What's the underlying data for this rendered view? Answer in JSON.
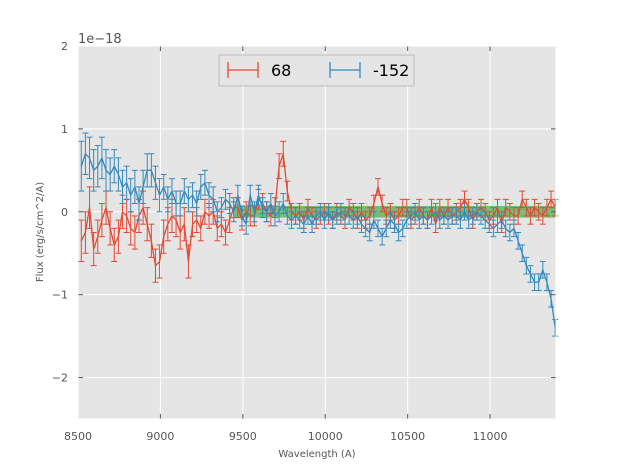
{
  "chart_data": {
    "type": "line",
    "title": "",
    "xlabel": "Wavelength (A)",
    "ylabel": "Flux (erg/s/cm^2/A)",
    "offset_text": "1e−18",
    "xlim": [
      8500,
      11400
    ],
    "ylim": [
      -2.5,
      2.0
    ],
    "y_unit_scale": "1e-18",
    "x_ticks": [
      8500,
      9000,
      9500,
      10000,
      10500,
      11000
    ],
    "x_tick_labels": [
      "8500",
      "9000",
      "9500",
      "10000",
      "10500",
      "11000"
    ],
    "y_ticks": [
      2,
      1,
      0,
      -1,
      -2
    ],
    "y_tick_labels": [
      "2",
      "1",
      "0",
      "−1",
      "−2"
    ],
    "grid": true,
    "legend_position": "top-center",
    "band": {
      "x_start": 9450,
      "x_end": 11400,
      "y_low": -0.07,
      "y_high": 0.07,
      "color": "#2ca02c"
    },
    "series": [
      {
        "name": "68",
        "color": "#e24a33",
        "x": [
          8520,
          8545,
          8570,
          8595,
          8620,
          8645,
          8670,
          8695,
          8720,
          8745,
          8770,
          8795,
          8820,
          8845,
          8870,
          8895,
          8920,
          8945,
          8970,
          8995,
          9020,
          9045,
          9070,
          9095,
          9120,
          9145,
          9170,
          9195,
          9220,
          9245,
          9270,
          9295,
          9320,
          9345,
          9370,
          9395,
          9420,
          9445,
          9470,
          9495,
          9520,
          9545,
          9570,
          9595,
          9620,
          9645,
          9670,
          9695,
          9720,
          9745,
          9770,
          9795,
          9820,
          9845,
          9870,
          9895,
          9920,
          9945,
          9970,
          9995,
          10020,
          10045,
          10070,
          10095,
          10120,
          10145,
          10170,
          10195,
          10220,
          10245,
          10270,
          10295,
          10320,
          10345,
          10370,
          10395,
          10420,
          10445,
          10470,
          10495,
          10520,
          10545,
          10570,
          10595,
          10620,
          10645,
          10670,
          10695,
          10720,
          10745,
          10770,
          10795,
          10820,
          10845,
          10870,
          10895,
          10920,
          10945,
          10970,
          10995,
          11020,
          11045,
          11070,
          11095,
          11120,
          11145,
          11170,
          11195,
          11220,
          11245,
          11270,
          11295,
          11320,
          11345,
          11370,
          11395
        ],
        "y": [
          -0.35,
          -0.25,
          0.05,
          -0.45,
          -0.3,
          -0.1,
          0.05,
          -0.2,
          -0.4,
          -0.3,
          0.0,
          -0.05,
          -0.2,
          -0.25,
          -0.05,
          0.05,
          -0.15,
          -0.35,
          -0.65,
          -0.6,
          -0.3,
          -0.15,
          -0.05,
          -0.1,
          -0.25,
          -0.15,
          -0.6,
          -0.15,
          -0.1,
          -0.2,
          0.0,
          -0.05,
          0.0,
          -0.2,
          -0.15,
          -0.25,
          -0.1,
          0.05,
          0.05,
          -0.1,
          0.0,
          -0.05,
          -0.05,
          0.15,
          0.1,
          0.0,
          -0.05,
          0.05,
          0.55,
          0.7,
          0.25,
          0.0,
          -0.05,
          0.0,
          -0.1,
          0.05,
          -0.05,
          -0.1,
          -0.05,
          0.0,
          -0.05,
          -0.1,
          0.0,
          -0.05,
          -0.1,
          0.05,
          0.0,
          -0.1,
          0.0,
          -0.1,
          -0.05,
          0.1,
          0.3,
          0.1,
          -0.05,
          0.0,
          -0.1,
          -0.05,
          0.05,
          0.05,
          -0.1,
          -0.05,
          0.05,
          -0.05,
          -0.1,
          0.05,
          -0.15,
          0.05,
          -0.05,
          0.05,
          -0.05,
          0.0,
          0.05,
          0.15,
          0.05,
          -0.1,
          0.0,
          0.05,
          0.0,
          -0.1,
          -0.05,
          0.05,
          -0.15,
          0.05,
          0.0,
          -0.05,
          -0.05,
          0.15,
          0.05,
          -0.05,
          0.05,
          0.0,
          -0.05,
          0.05,
          0.15,
          0.05
        ],
        "err": [
          0.25,
          0.25,
          0.25,
          0.2,
          0.2,
          0.2,
          0.2,
          0.2,
          0.2,
          0.2,
          0.2,
          0.2,
          0.2,
          0.2,
          0.2,
          0.2,
          0.2,
          0.2,
          0.2,
          0.2,
          0.2,
          0.2,
          0.2,
          0.2,
          0.2,
          0.2,
          0.2,
          0.15,
          0.15,
          0.15,
          0.15,
          0.15,
          0.15,
          0.15,
          0.15,
          0.15,
          0.15,
          0.12,
          0.12,
          0.12,
          0.12,
          0.12,
          0.12,
          0.12,
          0.12,
          0.12,
          0.12,
          0.12,
          0.15,
          0.15,
          0.12,
          0.1,
          0.1,
          0.1,
          0.1,
          0.1,
          0.1,
          0.1,
          0.1,
          0.1,
          0.1,
          0.1,
          0.1,
          0.1,
          0.1,
          0.1,
          0.1,
          0.1,
          0.1,
          0.1,
          0.1,
          0.1,
          0.1,
          0.1,
          0.1,
          0.1,
          0.1,
          0.1,
          0.1,
          0.1,
          0.1,
          0.1,
          0.1,
          0.1,
          0.1,
          0.1,
          0.1,
          0.1,
          0.1,
          0.1,
          0.1,
          0.1,
          0.1,
          0.1,
          0.1,
          0.1,
          0.1,
          0.1,
          0.1,
          0.1,
          0.1,
          0.1,
          0.1,
          0.1,
          0.1,
          0.1,
          0.1,
          0.1,
          0.1,
          0.1,
          0.1,
          0.1,
          0.1,
          0.1,
          0.1,
          0.1
        ]
      },
      {
        "name": "-152",
        "color": "#348abd",
        "x": [
          8520,
          8545,
          8570,
          8595,
          8620,
          8645,
          8670,
          8695,
          8720,
          8745,
          8770,
          8795,
          8820,
          8845,
          8870,
          8895,
          8920,
          8945,
          8970,
          8995,
          9020,
          9045,
          9070,
          9095,
          9120,
          9145,
          9170,
          9195,
          9220,
          9245,
          9270,
          9295,
          9320,
          9345,
          9370,
          9395,
          9420,
          9445,
          9470,
          9495,
          9520,
          9545,
          9570,
          9595,
          9620,
          9645,
          9670,
          9695,
          9720,
          9745,
          9770,
          9795,
          9820,
          9845,
          9870,
          9895,
          9920,
          9945,
          9970,
          9995,
          10020,
          10045,
          10070,
          10095,
          10120,
          10145,
          10170,
          10195,
          10220,
          10245,
          10270,
          10295,
          10320,
          10345,
          10370,
          10395,
          10420,
          10445,
          10470,
          10495,
          10520,
          10545,
          10570,
          10595,
          10620,
          10645,
          10670,
          10695,
          10720,
          10745,
          10770,
          10795,
          10820,
          10845,
          10870,
          10895,
          10920,
          10945,
          10970,
          10995,
          11020,
          11045,
          11070,
          11095,
          11120,
          11145,
          11170,
          11195,
          11220,
          11245,
          11270,
          11295,
          11320,
          11345,
          11370,
          11395
        ],
        "y": [
          0.55,
          0.7,
          0.65,
          0.5,
          0.55,
          0.65,
          0.5,
          0.45,
          0.55,
          0.45,
          0.3,
          0.35,
          0.2,
          0.3,
          0.1,
          0.3,
          0.5,
          0.5,
          0.35,
          0.2,
          0.3,
          0.15,
          0.25,
          0.1,
          0.1,
          0.25,
          0.15,
          0.2,
          0.1,
          0.3,
          0.35,
          0.2,
          0.15,
          0.0,
          0.05,
          0.15,
          0.1,
          0.0,
          0.2,
          -0.05,
          -0.15,
          0.2,
          0.0,
          0.2,
          0.05,
          0.0,
          0.1,
          -0.05,
          0.0,
          0.1,
          -0.05,
          -0.1,
          -0.05,
          -0.1,
          -0.15,
          -0.05,
          -0.15,
          -0.05,
          0.0,
          -0.1,
          0.0,
          -0.1,
          -0.05,
          0.0,
          -0.05,
          -0.05,
          -0.1,
          -0.05,
          -0.15,
          -0.2,
          -0.25,
          -0.1,
          -0.2,
          -0.3,
          -0.2,
          -0.1,
          -0.15,
          -0.25,
          -0.2,
          -0.1,
          -0.05,
          0.0,
          -0.1,
          -0.05,
          -0.1,
          -0.05,
          0.0,
          -0.1,
          -0.05,
          -0.1,
          -0.05,
          -0.05,
          -0.1,
          0.0,
          -0.1,
          -0.05,
          0.0,
          -0.05,
          -0.1,
          -0.15,
          -0.2,
          -0.15,
          -0.1,
          -0.2,
          -0.25,
          -0.2,
          -0.35,
          -0.5,
          -0.65,
          -0.75,
          -0.85,
          -0.85,
          -0.7,
          -0.85,
          -1.05,
          -1.4
        ],
        "err": [
          0.3,
          0.25,
          0.25,
          0.25,
          0.25,
          0.25,
          0.25,
          0.2,
          0.2,
          0.2,
          0.2,
          0.2,
          0.2,
          0.2,
          0.2,
          0.2,
          0.2,
          0.2,
          0.2,
          0.2,
          0.15,
          0.15,
          0.15,
          0.15,
          0.15,
          0.15,
          0.15,
          0.15,
          0.15,
          0.15,
          0.15,
          0.15,
          0.15,
          0.12,
          0.12,
          0.12,
          0.12,
          0.12,
          0.12,
          0.12,
          0.12,
          0.12,
          0.12,
          0.12,
          0.12,
          0.12,
          0.12,
          0.12,
          0.12,
          0.12,
          0.1,
          0.1,
          0.1,
          0.1,
          0.1,
          0.1,
          0.1,
          0.1,
          0.1,
          0.1,
          0.1,
          0.1,
          0.1,
          0.1,
          0.1,
          0.1,
          0.1,
          0.1,
          0.1,
          0.1,
          0.1,
          0.1,
          0.1,
          0.1,
          0.1,
          0.1,
          0.1,
          0.1,
          0.1,
          0.1,
          0.1,
          0.1,
          0.1,
          0.1,
          0.1,
          0.1,
          0.1,
          0.1,
          0.1,
          0.1,
          0.1,
          0.1,
          0.1,
          0.1,
          0.1,
          0.1,
          0.1,
          0.1,
          0.1,
          0.1,
          0.1,
          0.1,
          0.1,
          0.1,
          0.1,
          0.1,
          0.1,
          0.1,
          0.1,
          0.1,
          0.1,
          0.1,
          0.1,
          0.1,
          0.1,
          0.1
        ]
      }
    ]
  }
}
